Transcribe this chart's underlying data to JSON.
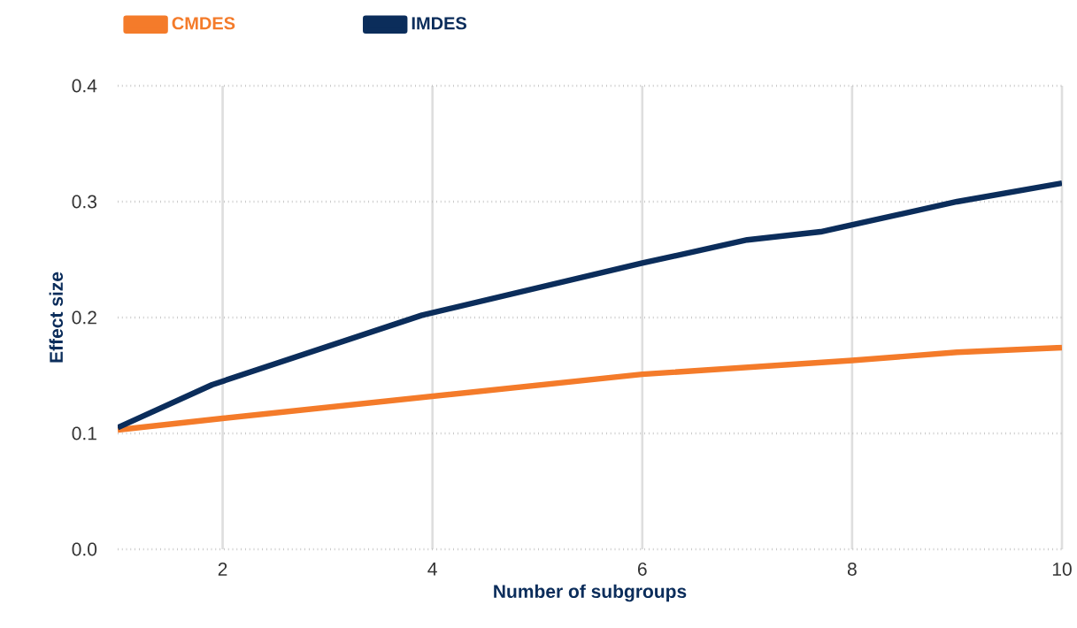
{
  "chart_data": {
    "type": "line",
    "xlabel": "Number of subgroups",
    "ylabel": "Effect size",
    "series": [
      {
        "name": "CMDES",
        "color": "#f47b2a",
        "x": [
          1,
          2,
          4,
          6,
          8,
          9,
          10
        ],
        "values": [
          0.103,
          0.113,
          0.132,
          0.151,
          0.163,
          0.17,
          0.174
        ]
      },
      {
        "name": "IMDES",
        "color": "#0b2d5b",
        "x": [
          1,
          1.9,
          3.9,
          6,
          7,
          7.7,
          9,
          10
        ],
        "values": [
          0.105,
          0.142,
          0.202,
          0.247,
          0.267,
          0.274,
          0.3,
          0.316
        ]
      }
    ],
    "xlim": [
      1,
      10
    ],
    "xticks": [
      2,
      4,
      6,
      8,
      10
    ],
    "ylim": [
      0,
      0.4
    ],
    "yticks": [
      {
        "value": 0,
        "label": "0.0"
      },
      0.1,
      0.2,
      0.3,
      0.4
    ],
    "grid": true,
    "legend": "top left",
    "marker": "none",
    "line_style": "solid"
  }
}
